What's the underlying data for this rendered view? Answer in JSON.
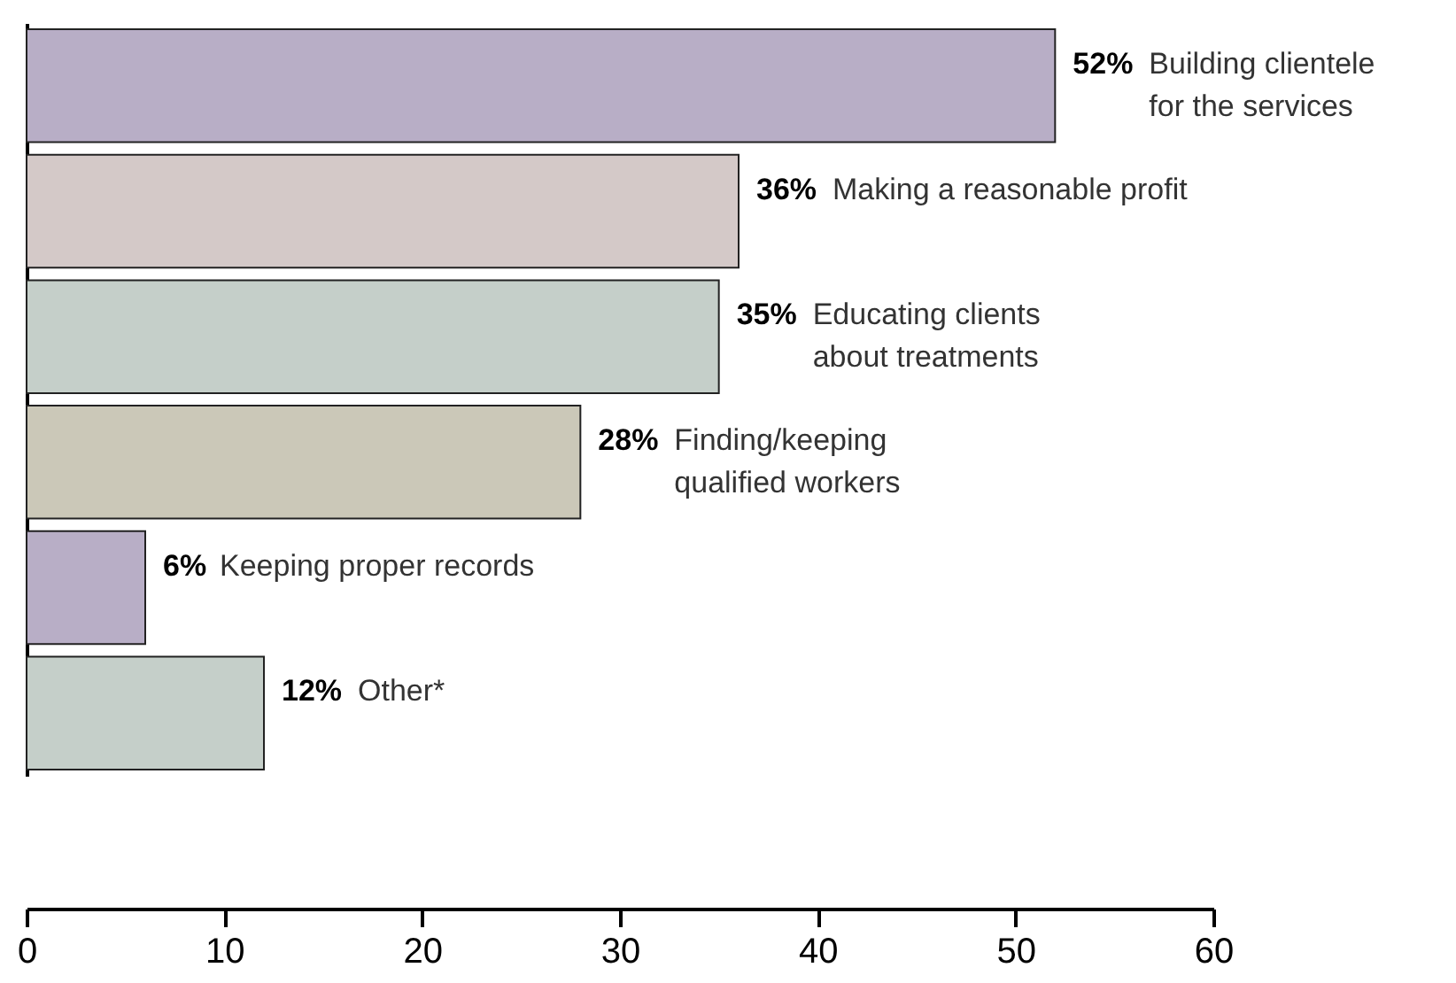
{
  "chart_data": {
    "type": "bar",
    "orientation": "horizontal",
    "categories": [
      "Building clientele\nfor the services",
      "Making a reasonable profit",
      "Educating clients\nabout treatments",
      "Finding/keeping\nqualified workers",
      "Keeping proper records",
      "Other*"
    ],
    "values": [
      52,
      36,
      35,
      28,
      6,
      12
    ],
    "value_labels": [
      "52%",
      "36%",
      "35%",
      "28%",
      "6%",
      "12%"
    ],
    "colors": [
      "#b8aec6",
      "#d4c9c8",
      "#c5cfc9",
      "#cbc8b8",
      "#b8aec6",
      "#c5cfc9"
    ],
    "xlim": [
      0,
      60
    ],
    "xticks": [
      0,
      10,
      20,
      30,
      40,
      50,
      60
    ],
    "grid": false,
    "tick_labels": "x"
  }
}
